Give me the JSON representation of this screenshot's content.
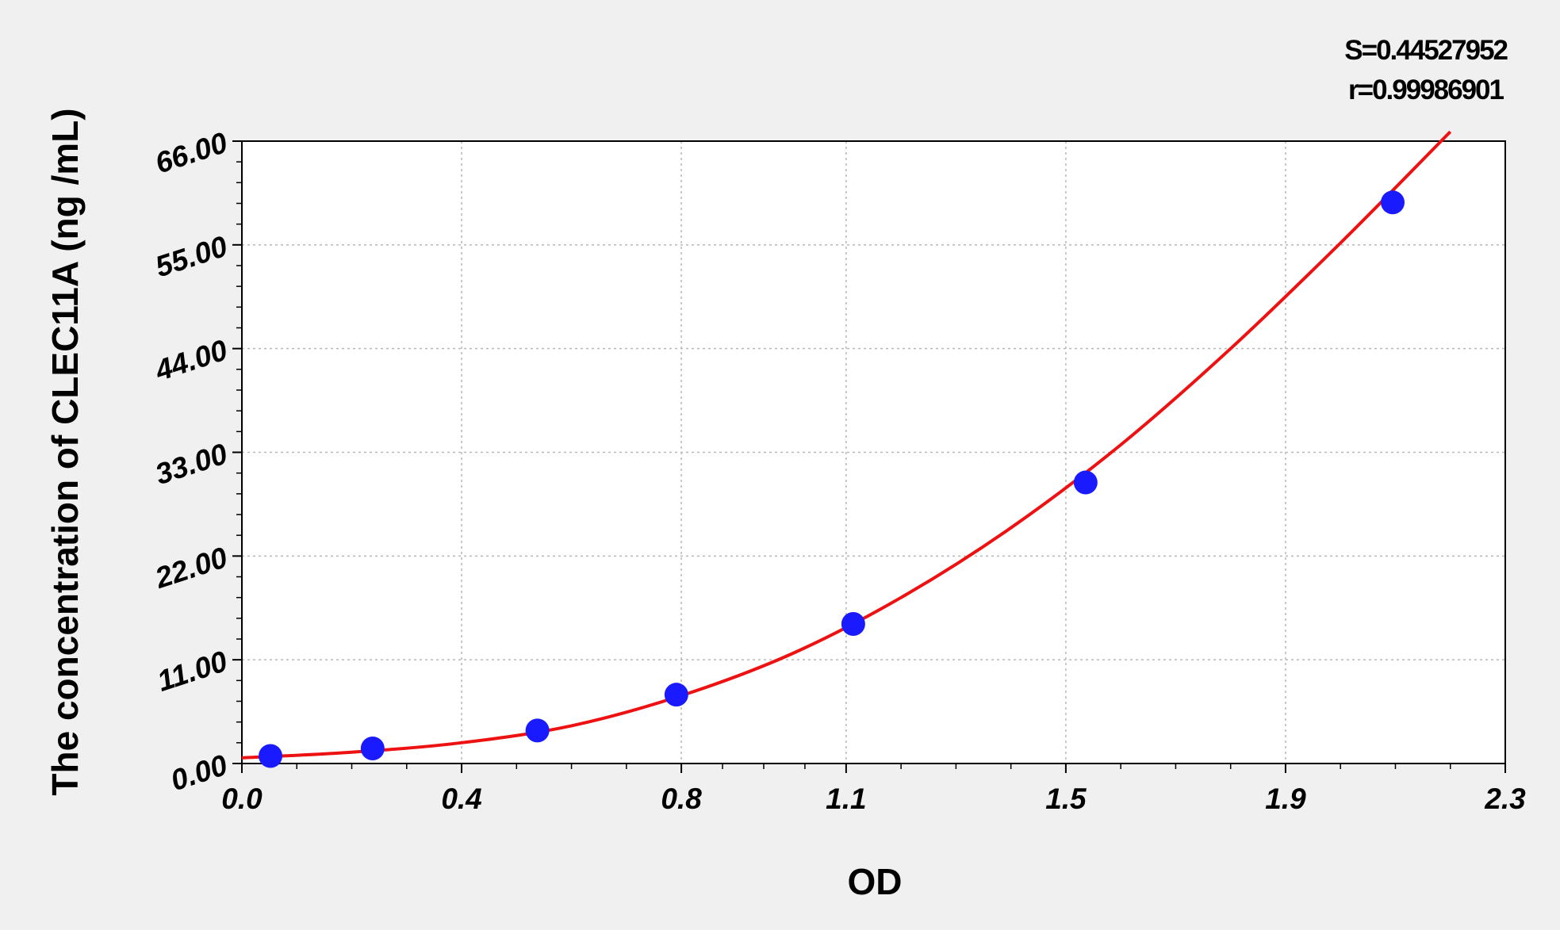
{
  "chart_data": {
    "type": "scatter",
    "title": "",
    "xlabel": "OD",
    "ylabel": "The concentration of CLEC11A  (ng /mL)",
    "xlim": [
      0.0,
      2.3
    ],
    "ylim": [
      0.0,
      66.0
    ],
    "x_ticks": [
      0.0,
      0.4,
      0.8,
      1.1,
      1.5,
      1.9,
      2.3
    ],
    "x_tick_labels": [
      "0.0",
      "0.4",
      "0.8",
      "1.1",
      "1.5",
      "1.9",
      "2.3"
    ],
    "y_ticks": [
      0,
      11,
      22,
      33,
      44,
      55,
      66
    ],
    "y_tick_labels": [
      "0.00",
      "11.00",
      "22.00",
      "33.00",
      "44.00",
      "55.00",
      "66.00"
    ],
    "grid": true,
    "series": [
      {
        "kind": "points",
        "color": "#1a1aff",
        "x": [
          0.052,
          0.238,
          0.538,
          0.791,
          1.113,
          1.536,
          2.095
        ],
        "y": [
          0.8,
          1.6,
          3.5,
          7.3,
          14.8,
          29.8,
          59.5
        ]
      },
      {
        "kind": "fit-curve",
        "color": "#ee1111",
        "x": [
          0.0,
          0.2,
          0.4,
          0.6,
          0.8,
          1.0,
          1.2,
          1.4,
          1.6,
          1.8,
          2.0,
          2.2
        ],
        "y": [
          0.6,
          1.2,
          2.2,
          4.0,
          7.2,
          11.6,
          17.6,
          25.0,
          33.8,
          44.0,
          55.2,
          67.0
        ]
      }
    ],
    "annotations": {
      "s_value": "S=0.44527952",
      "r_value": "r=0.99986901"
    }
  }
}
